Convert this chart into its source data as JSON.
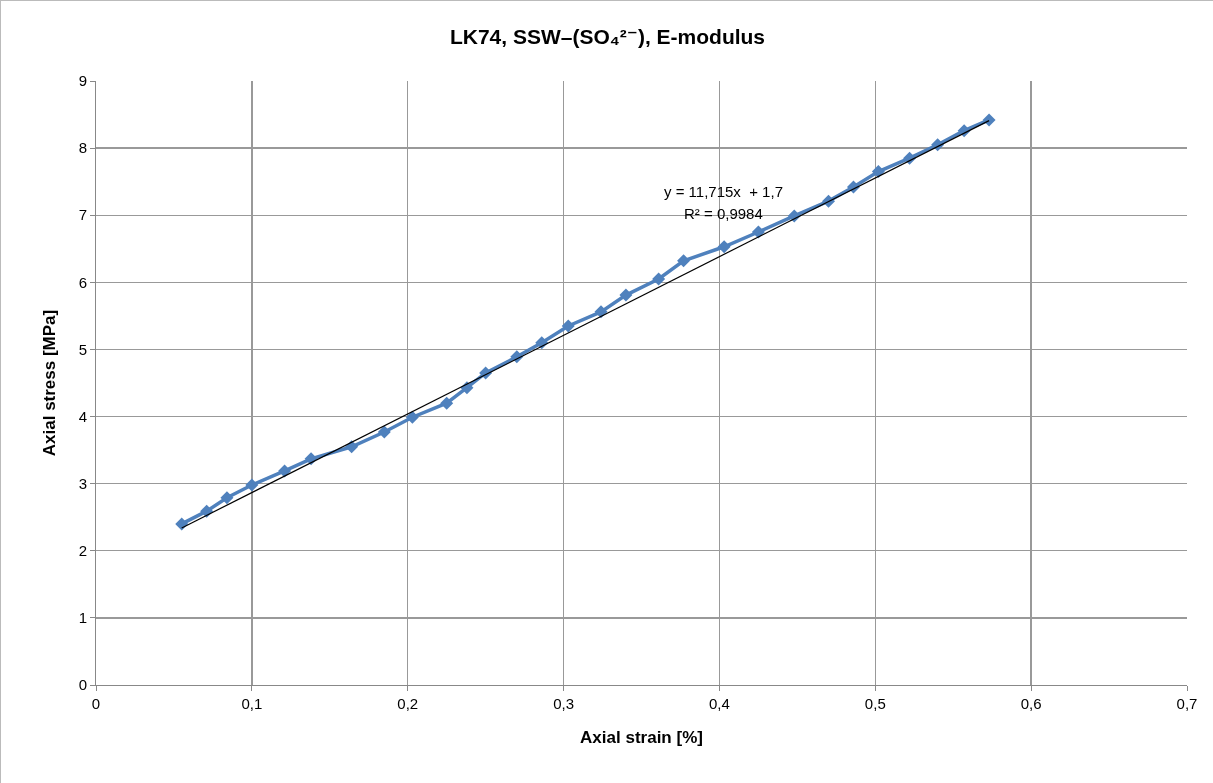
{
  "chart_data": {
    "type": "line",
    "title": "LK74, SSW–(SO₄²⁻), E-modulus",
    "xlabel": "Axial strain [%]",
    "ylabel": "Axial stress [MPa]",
    "series": [
      {
        "color": "#4f81bd",
        "marker": "diamond",
        "line_style": "solid",
        "x": [
          0.055,
          0.071,
          0.084,
          0.1,
          0.121,
          0.138,
          0.164,
          0.185,
          0.203,
          0.225,
          0.238,
          0.25,
          0.27,
          0.286,
          0.303,
          0.324,
          0.34,
          0.361,
          0.377,
          0.403,
          0.425,
          0.448,
          0.47,
          0.486,
          0.502,
          0.522,
          0.54,
          0.557,
          0.573
        ],
        "values": [
          2.4,
          2.59,
          2.79,
          2.98,
          3.19,
          3.37,
          3.55,
          3.77,
          3.99,
          4.2,
          4.43,
          4.65,
          4.89,
          5.1,
          5.35,
          5.56,
          5.81,
          6.05,
          6.32,
          6.53,
          6.75,
          6.99,
          7.21,
          7.42,
          7.65,
          7.85,
          8.05,
          8.26,
          8.42
        ]
      },
      {
        "type": "line",
        "color": "#000000",
        "marker": "none",
        "line_style": "solid",
        "x": [
          0.055,
          0.573
        ],
        "values": [
          2.34,
          8.41
        ]
      }
    ],
    "annotations": [
      "y = 11,715x  + 1,7",
      "R² = 0,9984"
    ],
    "xlim": [
      0,
      0.7
    ],
    "xticks": [
      0,
      {
        "value": 0.1,
        "label": "0,1"
      },
      {
        "value": 0.2,
        "label": "0,2"
      },
      {
        "value": 0.3,
        "label": "0,3"
      },
      {
        "value": 0.4,
        "label": "0,4"
      },
      {
        "value": 0.5,
        "label": "0,5"
      },
      {
        "value": 0.6,
        "label": "0,6"
      },
      {
        "value": 0.7,
        "label": "0,7"
      }
    ],
    "ylim": [
      0,
      9
    ],
    "yticks": [
      0,
      1,
      2,
      3,
      4,
      5,
      6,
      7,
      8,
      9
    ],
    "grid": true
  }
}
